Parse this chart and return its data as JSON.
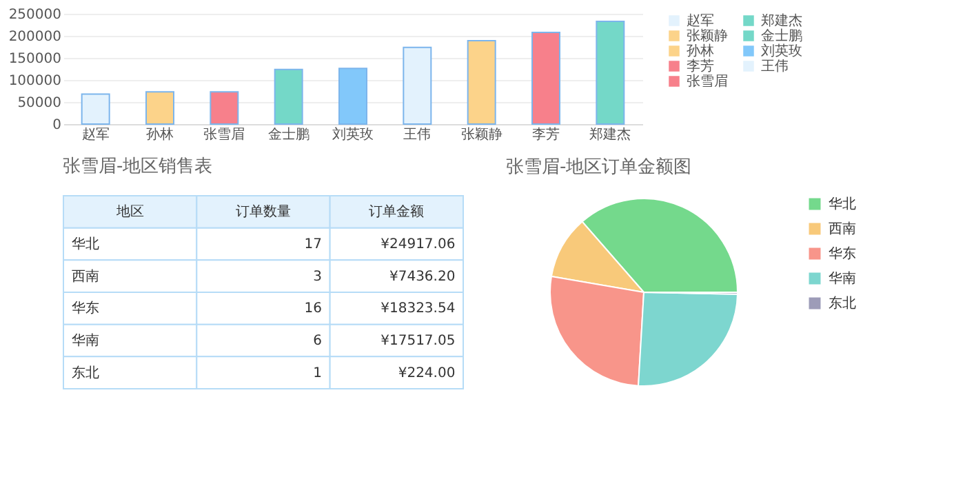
{
  "chart_data": [
    {
      "type": "bar",
      "categories": [
        "赵军",
        "孙林",
        "张雪眉",
        "金士鹏",
        "刘英玫",
        "王伟",
        "张颖静",
        "李芳",
        "郑建杰"
      ],
      "series": [
        {
          "name": "赵军",
          "color": "#e3f2fd",
          "values": [
            68000,
            null,
            null,
            null,
            null,
            null,
            null,
            null,
            null
          ]
        },
        {
          "name": "张颖静",
          "color": "#fcd38a",
          "values": [
            null,
            null,
            null,
            null,
            null,
            null,
            189000,
            null,
            null
          ]
        },
        {
          "name": "孙林",
          "color": "#fcd38a",
          "values": [
            null,
            73000,
            null,
            null,
            null,
            null,
            null,
            null,
            null
          ]
        },
        {
          "name": "李芳",
          "color": "#f7808b",
          "values": [
            null,
            null,
            null,
            null,
            null,
            null,
            null,
            208000,
            null
          ]
        },
        {
          "name": "张雪眉",
          "color": "#f7808b",
          "values": [
            null,
            null,
            73000,
            null,
            null,
            null,
            null,
            null,
            null
          ]
        },
        {
          "name": "郑建杰",
          "color": "#74d8c8",
          "values": [
            null,
            null,
            null,
            null,
            null,
            null,
            null,
            null,
            233000
          ]
        },
        {
          "name": "金士鹏",
          "color": "#74d8c8",
          "values": [
            null,
            null,
            null,
            124000,
            null,
            null,
            null,
            null,
            null
          ]
        },
        {
          "name": "刘英玫",
          "color": "#82c8fa",
          "values": [
            null,
            null,
            null,
            null,
            126000,
            null,
            null,
            null,
            null
          ]
        },
        {
          "name": "王伟",
          "color": "#e3f2fd",
          "values": [
            null,
            null,
            null,
            null,
            null,
            174000,
            null,
            null,
            null
          ]
        }
      ],
      "ylim": [
        0,
        250000
      ],
      "yticks": [
        0,
        50000,
        100000,
        150000,
        200000,
        250000
      ],
      "grid": "y",
      "legend": "right"
    },
    {
      "type": "other",
      "title": "张雪眉-地区销售表",
      "categories": [
        "地区",
        "订单数量",
        "订单金额"
      ],
      "annotations": [
        "华北",
        "17",
        "¥24917.06",
        "西南",
        "3",
        "¥7436.20",
        "华东",
        "16",
        "¥18323.54",
        "华南",
        "6",
        "¥17517.05",
        "东北",
        "1",
        "¥224.00"
      ]
    },
    {
      "type": "pie",
      "title": "张雪眉-地区订单金额图",
      "categories": [
        "华北",
        "西南",
        "华东",
        "华南",
        "东北"
      ],
      "values": [
        36.42,
        10.87,
        26.78,
        25.6,
        0.33
      ],
      "colors": [
        "#74d98c",
        "#f8c97a",
        "#f8958a",
        "#7dd6cf",
        "#9d9cb8"
      ],
      "legend": "right"
    }
  ]
}
